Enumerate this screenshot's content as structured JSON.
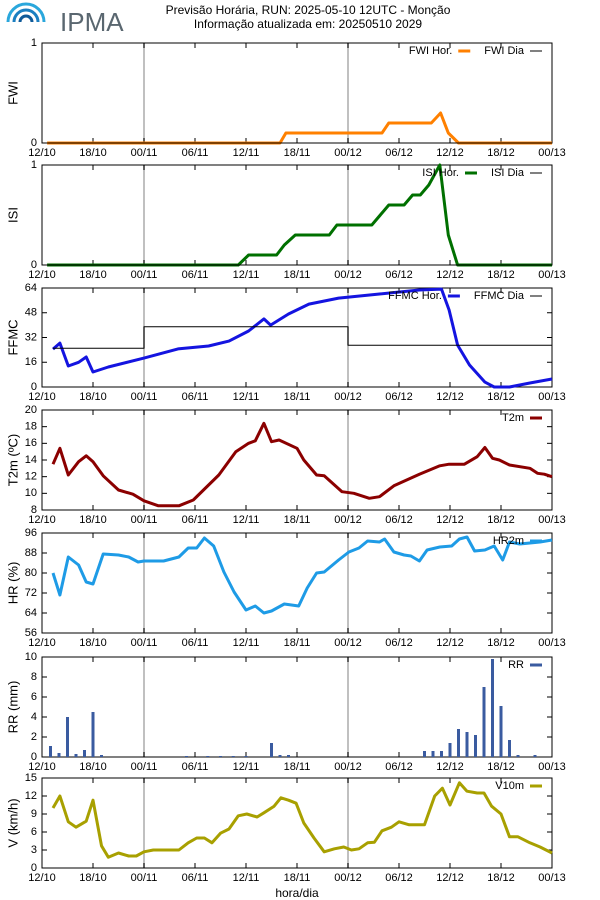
{
  "header": {
    "logo": "IPMA",
    "title": "Previsão Horária, RUN: 2025-05-10 12UTC - Monção",
    "subtitle": "Informação atualizada em: 20250510 2029"
  },
  "chart_data": [
    {
      "type": "line",
      "ylabel": "FWI",
      "xlim": [
        0,
        60
      ],
      "ylim": [
        0,
        1
      ],
      "yticks": [
        0,
        1
      ],
      "xticks": [
        {
          "value": 0,
          "label": "12/10"
        },
        {
          "value": 6,
          "label": "18/10"
        },
        {
          "value": 12,
          "label": "00/11"
        },
        {
          "value": 18,
          "label": "06/11"
        },
        {
          "value": 24,
          "label": "12/11"
        },
        {
          "value": 30,
          "label": "18/11"
        },
        {
          "value": 36,
          "label": "00/12"
        },
        {
          "value": 42,
          "label": "06/12"
        },
        {
          "value": 48,
          "label": "12/12"
        },
        {
          "value": 54,
          "label": "18/12"
        },
        {
          "value": 60,
          "label": "00/13"
        }
      ],
      "vlines": [
        12,
        36
      ],
      "series": [
        {
          "name": "FWI Hor.",
          "color": "#ff8000",
          "x": [
            0.6,
            28,
            28.7,
            40,
            40.8,
            45.8,
            46.9,
            47.8,
            49,
            60
          ],
          "values": [
            0,
            0,
            0.1,
            0.1,
            0.2,
            0.2,
            0.3,
            0.1,
            0,
            0
          ]
        },
        {
          "name": "FWI Dia",
          "color": "#000000",
          "x": [
            0.6,
            60
          ],
          "values": [
            0,
            0
          ]
        }
      ]
    },
    {
      "type": "line",
      "ylabel": "ISI",
      "xlim": [
        0,
        60
      ],
      "ylim": [
        0,
        1
      ],
      "yticks": [
        0,
        1
      ],
      "xticks": [
        {
          "value": 0,
          "label": "12/10"
        },
        {
          "value": 6,
          "label": "18/10"
        },
        {
          "value": 12,
          "label": "00/11"
        },
        {
          "value": 18,
          "label": "06/11"
        },
        {
          "value": 24,
          "label": "12/11"
        },
        {
          "value": 30,
          "label": "18/11"
        },
        {
          "value": 36,
          "label": "00/12"
        },
        {
          "value": 42,
          "label": "06/12"
        },
        {
          "value": 48,
          "label": "12/12"
        },
        {
          "value": 54,
          "label": "18/12"
        },
        {
          "value": 60,
          "label": "00/13"
        }
      ],
      "vlines": [
        12,
        36
      ],
      "series": [
        {
          "name": "ISI Hor.",
          "color": "#007000",
          "x": [
            0.6,
            23.1,
            24.3,
            27.6,
            28.5,
            29.8,
            33.8,
            34.7,
            38.8,
            40.8,
            42.6,
            43.6,
            44.5,
            45.5,
            46.8,
            47.8,
            48.9,
            60
          ],
          "values": [
            0,
            0,
            0.1,
            0.1,
            0.2,
            0.3,
            0.3,
            0.4,
            0.4,
            0.6,
            0.6,
            0.7,
            0.7,
            0.8,
            1.0,
            0.3,
            0,
            0
          ]
        },
        {
          "name": "ISI Dia",
          "color": "#000000",
          "x": [
            0.6,
            60
          ],
          "values": [
            0,
            0
          ]
        }
      ]
    },
    {
      "type": "line",
      "ylabel": "FFMC",
      "xlim": [
        0,
        60
      ],
      "ylim": [
        0,
        64
      ],
      "yticks": [
        0,
        16,
        32,
        48,
        64
      ],
      "xticks": [
        {
          "value": 0,
          "label": "12/10"
        },
        {
          "value": 6,
          "label": "18/10"
        },
        {
          "value": 12,
          "label": "00/11"
        },
        {
          "value": 18,
          "label": "06/11"
        },
        {
          "value": 24,
          "label": "12/11"
        },
        {
          "value": 30,
          "label": "18/11"
        },
        {
          "value": 36,
          "label": "00/12"
        },
        {
          "value": 42,
          "label": "06/12"
        },
        {
          "value": 48,
          "label": "12/12"
        },
        {
          "value": 54,
          "label": "18/12"
        },
        {
          "value": 60,
          "label": "00/13"
        }
      ],
      "vlines": [
        12,
        36
      ],
      "series": [
        {
          "name": "FFMC Hor.",
          "color": "#1414e0",
          "x": [
            1.3,
            2.1,
            3.1,
            4.3,
            5.2,
            6,
            7.8,
            12,
            16,
            19.6,
            22,
            24.3,
            26.1,
            26.9,
            29,
            31.4,
            34.9,
            39.7,
            44.4,
            47,
            47.9,
            48.9,
            50.3,
            52.1,
            53.2,
            55,
            57.4,
            60
          ],
          "values": [
            24.5,
            28.4,
            13.6,
            16,
            19.4,
            9.7,
            12.9,
            18.7,
            24.6,
            26.5,
            29.7,
            36.2,
            44,
            40,
            47.2,
            53.6,
            57.5,
            60.1,
            62.7,
            63.3,
            49.8,
            27.1,
            14.2,
            3.2,
            0,
            0,
            2.6,
            5.2
          ]
        },
        {
          "name": "FFMC Dia",
          "color": "#000000",
          "x": [
            1.3,
            12,
            12,
            36,
            36,
            60
          ],
          "values": [
            25,
            25,
            39,
            39,
            27,
            27
          ]
        }
      ]
    },
    {
      "type": "line",
      "ylabel": "T2m (ºC)",
      "xlim": [
        0,
        60
      ],
      "ylim": [
        8,
        20
      ],
      "yticks": [
        8,
        10,
        12,
        14,
        16,
        18,
        20
      ],
      "xticks": [
        {
          "value": 0,
          "label": "12/10"
        },
        {
          "value": 6,
          "label": "18/10"
        },
        {
          "value": 12,
          "label": "00/11"
        },
        {
          "value": 18,
          "label": "06/11"
        },
        {
          "value": 24,
          "label": "12/11"
        },
        {
          "value": 30,
          "label": "18/11"
        },
        {
          "value": 36,
          "label": "00/12"
        },
        {
          "value": 42,
          "label": "06/12"
        },
        {
          "value": 48,
          "label": "12/12"
        },
        {
          "value": 54,
          "label": "18/12"
        },
        {
          "value": 60,
          "label": "00/13"
        }
      ],
      "vlines": [
        12,
        36
      ],
      "series": [
        {
          "name": "T2m",
          "color": "#8b0000",
          "x": [
            1.3,
            2.1,
            3.1,
            4.3,
            5.2,
            6,
            7.2,
            9,
            10.7,
            12,
            13.7,
            16.1,
            17.8,
            19,
            20.8,
            22.8,
            24.3,
            25.1,
            26.1,
            27,
            27.9,
            30,
            30.8,
            32.3,
            33.2,
            35.3,
            36.7,
            38.5,
            39.7,
            41.4,
            44.4,
            46.8,
            47.9,
            49.7,
            51.2,
            52.1,
            53,
            53.8,
            55,
            57.4,
            58.3,
            59.1,
            60
          ],
          "values": [
            13.5,
            15.4,
            12.2,
            13.8,
            14.5,
            13.8,
            12.1,
            10.4,
            9.9,
            9.1,
            8.5,
            8.5,
            9.2,
            10.4,
            12.2,
            15,
            16,
            16.3,
            18.4,
            16.2,
            16.4,
            15.4,
            14,
            12.2,
            12.1,
            10.2,
            10,
            9.4,
            9.6,
            10.9,
            12.3,
            13.3,
            13.5,
            13.5,
            14.4,
            15.5,
            14.2,
            14,
            13.4,
            13,
            12.4,
            12.3,
            12
          ]
        }
      ]
    },
    {
      "type": "line",
      "ylabel": "HR (%)",
      "xlim": [
        0,
        60
      ],
      "ylim": [
        56,
        96
      ],
      "yticks": [
        56,
        64,
        72,
        80,
        88,
        96
      ],
      "xticks": [
        {
          "value": 0,
          "label": "12/10"
        },
        {
          "value": 6,
          "label": "18/10"
        },
        {
          "value": 12,
          "label": "00/11"
        },
        {
          "value": 18,
          "label": "06/11"
        },
        {
          "value": 24,
          "label": "12/11"
        },
        {
          "value": 30,
          "label": "18/11"
        },
        {
          "value": 36,
          "label": "00/12"
        },
        {
          "value": 42,
          "label": "06/12"
        },
        {
          "value": 48,
          "label": "12/12"
        },
        {
          "value": 54,
          "label": "18/12"
        },
        {
          "value": 60,
          "label": "00/13"
        }
      ],
      "vlines": [
        12,
        36
      ],
      "series": [
        {
          "name": "HR2m",
          "color": "#1e9be6",
          "x": [
            1.3,
            2.1,
            3.1,
            4.3,
            5.2,
            6,
            7.2,
            9,
            10.2,
            11.3,
            12,
            14.3,
            16.1,
            17.2,
            18.2,
            19.1,
            20.2,
            21.4,
            22.6,
            24,
            25.1,
            26.1,
            27,
            28.5,
            30.2,
            31.2,
            32.3,
            33.2,
            34.9,
            36.1,
            37.3,
            38.3,
            39.7,
            40.3,
            41.4,
            42.6,
            43.4,
            44.4,
            45.3,
            46.8,
            48.2,
            49.1,
            50,
            50.9,
            52.1,
            53.2,
            54.2,
            55,
            56.2,
            57.4,
            58.6,
            60
          ],
          "values": [
            80,
            71.2,
            86.4,
            83.2,
            76.4,
            75.6,
            87.6,
            87.2,
            86.4,
            84.4,
            84.8,
            84.8,
            86.4,
            90,
            90,
            94,
            90.8,
            80.4,
            72.4,
            65.2,
            66.8,
            64,
            64.8,
            67.6,
            66.8,
            74,
            80,
            80.4,
            85.2,
            88.4,
            90,
            92.8,
            92.4,
            93.6,
            88.4,
            87.2,
            86.8,
            84.8,
            89.2,
            90.4,
            90.8,
            93.6,
            94.4,
            88.8,
            89.2,
            90.8,
            85.2,
            92.4,
            91.6,
            92,
            92.4,
            93.2
          ]
        }
      ]
    },
    {
      "type": "bar",
      "ylabel": "RR (mm)",
      "xlim": [
        0,
        60
      ],
      "ylim": [
        0,
        10
      ],
      "yticks": [
        0,
        2,
        4,
        6,
        8,
        10
      ],
      "xticks": [
        {
          "value": 0,
          "label": "12/10"
        },
        {
          "value": 6,
          "label": "18/10"
        },
        {
          "value": 12,
          "label": "00/11"
        },
        {
          "value": 18,
          "label": "06/11"
        },
        {
          "value": 24,
          "label": "12/11"
        },
        {
          "value": 30,
          "label": "18/11"
        },
        {
          "value": 36,
          "label": "00/12"
        },
        {
          "value": 42,
          "label": "06/12"
        },
        {
          "value": 48,
          "label": "12/12"
        },
        {
          "value": 54,
          "label": "18/12"
        },
        {
          "value": 60,
          "label": "00/13"
        }
      ],
      "vlines": [
        12,
        36
      ],
      "series": [
        {
          "name": "RR",
          "color": "#3a5ba0",
          "x": [
            1,
            2,
            3,
            4,
            5,
            6,
            7,
            17,
            19.5,
            21,
            22.5,
            24,
            27,
            28,
            29,
            45,
            46,
            47,
            48,
            49,
            50,
            51,
            52,
            53,
            54,
            55,
            56,
            58
          ],
          "values": [
            1.1,
            0.4,
            4.0,
            0.3,
            0.7,
            4.5,
            0.2,
            0.1,
            0.1,
            0.1,
            0.1,
            0.1,
            1.4,
            0.2,
            0.2,
            0.6,
            0.6,
            0.6,
            1.4,
            2.8,
            2.5,
            2.2,
            7.0,
            9.8,
            5.1,
            1.7,
            0.2,
            0.2
          ]
        }
      ]
    },
    {
      "type": "line",
      "ylabel": "V (km/h)",
      "xlabel": "hora/dia",
      "xlim": [
        0,
        60
      ],
      "ylim": [
        0,
        15
      ],
      "yticks": [
        0,
        3,
        6,
        9,
        12,
        15
      ],
      "xticks": [
        {
          "value": 0,
          "label": "12/10"
        },
        {
          "value": 6,
          "label": "18/10"
        },
        {
          "value": 12,
          "label": "00/11"
        },
        {
          "value": 18,
          "label": "06/11"
        },
        {
          "value": 24,
          "label": "12/11"
        },
        {
          "value": 30,
          "label": "18/11"
        },
        {
          "value": 36,
          "label": "00/12"
        },
        {
          "value": 42,
          "label": "06/12"
        },
        {
          "value": 48,
          "label": "12/12"
        },
        {
          "value": 54,
          "label": "18/12"
        },
        {
          "value": 60,
          "label": "00/13"
        }
      ],
      "vlines": [
        12,
        36
      ],
      "series": [
        {
          "name": "V10m",
          "color": "#a8a000",
          "x": [
            1.3,
            2.1,
            3.1,
            4,
            5.2,
            6,
            7,
            7.8,
            9,
            10.2,
            11.1,
            12,
            13.1,
            16.1,
            17.2,
            18.2,
            19.1,
            20,
            21,
            22,
            23.1,
            24.1,
            25.3,
            26.1,
            27.3,
            28.1,
            29,
            29.9,
            30.8,
            32,
            33.2,
            34.4,
            35.5,
            36.4,
            37.3,
            38.3,
            39.1,
            40,
            41.1,
            42,
            43.2,
            45,
            46.2,
            47.1,
            48,
            49.1,
            50,
            51.2,
            52,
            52.9,
            54,
            55,
            56,
            57.4,
            58.6,
            60
          ],
          "values": [
            10,
            12,
            7.7,
            6.8,
            7.8,
            11.3,
            3.7,
            1.8,
            2.5,
            2,
            2,
            2.7,
            3,
            3,
            4.2,
            5,
            5,
            4.2,
            5.8,
            6.5,
            8.7,
            9,
            8.5,
            9.2,
            10.3,
            11.7,
            11.3,
            10.8,
            7.5,
            5,
            2.7,
            3.2,
            3.5,
            3,
            3.2,
            4.2,
            4.3,
            6.2,
            6.8,
            7.7,
            7.2,
            7.2,
            12,
            13.3,
            10.5,
            14.2,
            12.8,
            12.5,
            12.5,
            10.3,
            9,
            5.2,
            5.2,
            4.2,
            3.5,
            2.5
          ]
        }
      ]
    }
  ]
}
